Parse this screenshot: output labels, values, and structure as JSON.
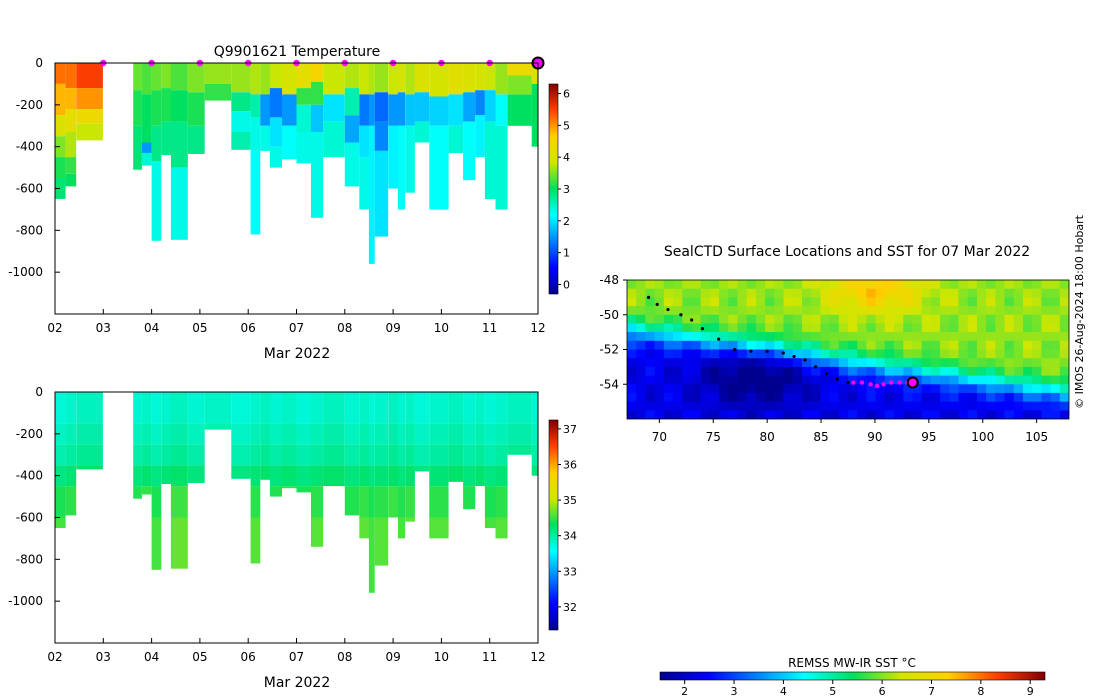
{
  "chart_data": [
    {
      "type": "heatmap",
      "id": "temperature-profile",
      "title": "Q9901621  Temperature",
      "xlabel": "Mar 2022",
      "ylabel": "",
      "x_ticks": [
        "02",
        "03",
        "04",
        "05",
        "06",
        "07",
        "08",
        "09",
        "10",
        "11",
        "12"
      ],
      "x_range": [
        2,
        12
      ],
      "y_ticks": [
        "0",
        "-200",
        "-400",
        "-600",
        "-800",
        "-1000"
      ],
      "y_tick_values": [
        0,
        -200,
        -400,
        -600,
        -800,
        -1000
      ],
      "y_range": [
        -1200,
        0
      ],
      "colorbar": {
        "min": -0.3,
        "max": 6.3,
        "ticks": [
          "0",
          "1",
          "2",
          "3",
          "4",
          "5",
          "6"
        ],
        "tick_values": [
          0,
          1,
          2,
          3,
          4,
          5,
          6
        ],
        "colormap": "jet"
      },
      "surface_markers_day": [
        3,
        4,
        5,
        6,
        7,
        8,
        9,
        10,
        11
      ],
      "last_position_day": 12,
      "profiles": [
        {
          "day": 2.0,
          "width": 0.22,
          "max_depth": 650,
          "layers": [
            [
              0,
              5.2
            ],
            [
              100,
              4.8
            ],
            [
              250,
              4.0
            ],
            [
              350,
              3.5
            ],
            [
              450,
              3.1
            ],
            [
              550,
              2.9
            ]
          ]
        },
        {
          "day": 2.22,
          "width": 0.22,
          "max_depth": 590,
          "layers": [
            [
              0,
              5.2
            ],
            [
              120,
              4.8
            ],
            [
              220,
              4.2
            ],
            [
              330,
              3.7
            ],
            [
              450,
              3.2
            ],
            [
              530,
              3.0
            ]
          ]
        },
        {
          "day": 2.44,
          "width": 0.55,
          "max_depth": 370,
          "layers": [
            [
              0,
              5.5
            ],
            [
              120,
              5.0
            ],
            [
              220,
              4.3
            ],
            [
              290,
              3.8
            ]
          ]
        },
        {
          "day": 3.62,
          "width": 0.18,
          "max_depth": 510,
          "layers": [
            [
              0,
              3.4
            ],
            [
              130,
              3.1
            ],
            [
              300,
              2.9
            ]
          ]
        },
        {
          "day": 3.8,
          "width": 0.2,
          "max_depth": 490,
          "layers": [
            [
              0,
              3.3
            ],
            [
              150,
              3.0
            ],
            [
              380,
              1.5
            ],
            [
              430,
              2.4
            ]
          ]
        },
        {
          "day": 4.0,
          "width": 0.2,
          "max_depth": 850,
          "layers": [
            [
              0,
              3.4
            ],
            [
              130,
              3.1
            ],
            [
              300,
              2.8
            ],
            [
              470,
              2.3
            ]
          ]
        },
        {
          "day": 4.2,
          "width": 0.2,
          "max_depth": 440,
          "layers": [
            [
              0,
              3.5
            ],
            [
              120,
              3.1
            ],
            [
              280,
              2.8
            ]
          ]
        },
        {
          "day": 4.4,
          "width": 0.35,
          "max_depth": 845,
          "layers": [
            [
              0,
              3.3
            ],
            [
              130,
              3.0
            ],
            [
              280,
              2.8
            ],
            [
              500,
              2.3
            ]
          ]
        },
        {
          "day": 4.75,
          "width": 0.35,
          "max_depth": 435,
          "layers": [
            [
              0,
              3.5
            ],
            [
              140,
              3.1
            ],
            [
              300,
              2.8
            ]
          ]
        },
        {
          "day": 5.1,
          "width": 0.55,
          "max_depth": 180,
          "layers": [
            [
              0,
              3.6
            ],
            [
              100,
              3.2
            ]
          ]
        },
        {
          "day": 5.65,
          "width": 0.4,
          "max_depth": 415,
          "layers": [
            [
              0,
              3.6
            ],
            [
              140,
              2.8
            ],
            [
              230,
              2.3
            ],
            [
              330,
              2.6
            ]
          ]
        },
        {
          "day": 6.05,
          "width": 0.2,
          "max_depth": 820,
          "layers": [
            [
              0,
              3.7
            ],
            [
              150,
              2.6
            ],
            [
              260,
              2.3
            ],
            [
              420,
              2.2
            ]
          ]
        },
        {
          "day": 6.25,
          "width": 0.2,
          "max_depth": 420,
          "layers": [
            [
              0,
              3.6
            ],
            [
              150,
              1.5
            ],
            [
              300,
              2.3
            ]
          ]
        },
        {
          "day": 6.45,
          "width": 0.25,
          "max_depth": 500,
          "layers": [
            [
              0,
              3.8
            ],
            [
              120,
              1.3
            ],
            [
              260,
              2.0
            ],
            [
              400,
              2.3
            ]
          ]
        },
        {
          "day": 6.7,
          "width": 0.3,
          "max_depth": 460,
          "layers": [
            [
              0,
              3.9
            ],
            [
              150,
              1.5
            ],
            [
              300,
              2.2
            ]
          ]
        },
        {
          "day": 7.0,
          "width": 0.3,
          "max_depth": 480,
          "layers": [
            [
              0,
              4.2
            ],
            [
              120,
              3.2
            ],
            [
              200,
              2.4
            ],
            [
              330,
              2.3
            ]
          ]
        },
        {
          "day": 7.3,
          "width": 0.25,
          "max_depth": 740,
          "layers": [
            [
              0,
              4.5
            ],
            [
              90,
              3.2
            ],
            [
              200,
              1.8
            ],
            [
              330,
              2.3
            ]
          ]
        },
        {
          "day": 7.55,
          "width": 0.45,
          "max_depth": 450,
          "layers": [
            [
              0,
              3.8
            ],
            [
              150,
              2.0
            ],
            [
              280,
              2.4
            ]
          ]
        },
        {
          "day": 8.0,
          "width": 0.3,
          "max_depth": 590,
          "layers": [
            [
              0,
              3.7
            ],
            [
              120,
              2.6
            ],
            [
              250,
              1.6
            ],
            [
              380,
              2.3
            ]
          ]
        },
        {
          "day": 8.3,
          "width": 0.2,
          "max_depth": 700,
          "layers": [
            [
              0,
              3.8
            ],
            [
              150,
              1.3
            ],
            [
              300,
              2.0
            ],
            [
              450,
              2.3
            ]
          ]
        },
        {
          "day": 8.5,
          "width": 0.12,
          "max_depth": 960,
          "layers": [
            [
              0,
              3.7
            ],
            [
              150,
              1.5
            ],
            [
              300,
              2.1
            ]
          ]
        },
        {
          "day": 8.62,
          "width": 0.28,
          "max_depth": 830,
          "layers": [
            [
              0,
              3.6
            ],
            [
              140,
              1.2
            ],
            [
              280,
              1.4
            ],
            [
              420,
              2.0
            ]
          ]
        },
        {
          "day": 8.9,
          "width": 0.2,
          "max_depth": 600,
          "layers": [
            [
              0,
              3.8
            ],
            [
              150,
              1.5
            ],
            [
              300,
              2.1
            ]
          ]
        },
        {
          "day": 9.1,
          "width": 0.15,
          "max_depth": 700,
          "layers": [
            [
              0,
              3.9
            ],
            [
              140,
              1.5
            ],
            [
              300,
              2.2
            ]
          ]
        },
        {
          "day": 9.25,
          "width": 0.2,
          "max_depth": 620,
          "layers": [
            [
              0,
              3.7
            ],
            [
              150,
              1.8
            ],
            [
              300,
              2.3
            ]
          ]
        },
        {
          "day": 9.45,
          "width": 0.3,
          "max_depth": 380,
          "layers": [
            [
              0,
              4.0
            ],
            [
              140,
              1.8
            ],
            [
              280,
              2.4
            ]
          ]
        },
        {
          "day": 9.75,
          "width": 0.4,
          "max_depth": 700,
          "layers": [
            [
              0,
              3.9
            ],
            [
              160,
              1.9
            ],
            [
              300,
              2.2
            ]
          ]
        },
        {
          "day": 10.15,
          "width": 0.3,
          "max_depth": 430,
          "layers": [
            [
              0,
              4.1
            ],
            [
              150,
              2.0
            ],
            [
              300,
              2.4
            ]
          ]
        },
        {
          "day": 10.45,
          "width": 0.25,
          "max_depth": 560,
          "layers": [
            [
              0,
              4.0
            ],
            [
              140,
              1.6
            ],
            [
              280,
              2.2
            ]
          ]
        },
        {
          "day": 10.7,
          "width": 0.2,
          "max_depth": 450,
          "layers": [
            [
              0,
              3.9
            ],
            [
              130,
              1.4
            ],
            [
              250,
              2.1
            ]
          ]
        },
        {
          "day": 10.9,
          "width": 0.22,
          "max_depth": 650,
          "layers": [
            [
              0,
              3.8
            ],
            [
              130,
              1.9
            ],
            [
              280,
              2.4
            ]
          ]
        },
        {
          "day": 11.12,
          "width": 0.25,
          "max_depth": 700,
          "layers": [
            [
              0,
              3.6
            ],
            [
              150,
              2.2
            ],
            [
              300,
              2.4
            ]
          ]
        },
        {
          "day": 11.37,
          "width": 0.5,
          "max_depth": 300,
          "layers": [
            [
              0,
              4.3
            ],
            [
              60,
              3.5
            ],
            [
              150,
              3.0
            ]
          ]
        },
        {
          "day": 11.87,
          "width": 0.13,
          "max_depth": 400,
          "layers": [
            [
              0,
              4.0
            ],
            [
              100,
              3.0
            ]
          ]
        }
      ]
    },
    {
      "type": "heatmap",
      "id": "salinity-profile",
      "title": "",
      "xlabel": "Mar 2022",
      "x_ticks": [
        "02",
        "03",
        "04",
        "05",
        "06",
        "07",
        "08",
        "09",
        "10",
        "11",
        "12"
      ],
      "x_range": [
        2,
        12
      ],
      "y_ticks": [
        "0",
        "-200",
        "-400",
        "-600",
        "-800",
        "-1000"
      ],
      "y_tick_values": [
        0,
        -200,
        -400,
        -600,
        -800,
        -1000
      ],
      "y_range": [
        -1200,
        0
      ],
      "colorbar": {
        "min": 31.35,
        "max": 37.25,
        "ticks": [
          "32",
          "33",
          "34",
          "35",
          "36",
          "37"
        ],
        "tick_values": [
          32,
          33,
          34,
          35,
          36,
          37
        ],
        "colormap": "jet"
      },
      "value_bands": [
        [
          0,
          33.8
        ],
        [
          150,
          33.9
        ],
        [
          250,
          34.0
        ],
        [
          350,
          34.2
        ],
        [
          450,
          34.45
        ],
        [
          600,
          34.6
        ]
      ]
    },
    {
      "type": "heatmap",
      "id": "sst-map",
      "title": "SealCTD Surface Locations and SST for 07 Mar 2022",
      "x_ticks": [
        "70",
        "75",
        "80",
        "85",
        "90",
        "95",
        "100",
        "105"
      ],
      "x_tick_values": [
        70,
        75,
        80,
        85,
        90,
        95,
        100,
        105
      ],
      "x_range": [
        67,
        108
      ],
      "y_ticks": [
        "-48",
        "-50",
        "-52",
        "-54"
      ],
      "y_tick_values": [
        -48,
        -50,
        -52,
        -54
      ],
      "y_range": [
        -56,
        -48
      ],
      "colorbar": {
        "label": "REMSS MW-IR SST °C",
        "min": 1.5,
        "max": 9.3,
        "ticks": [
          "2",
          "3",
          "4",
          "5",
          "6",
          "7",
          "8",
          "9"
        ],
        "tick_values": [
          2,
          3,
          4,
          5,
          6,
          7,
          8,
          9
        ],
        "colormap": "jet"
      },
      "track_past": [
        [
          69.0,
          -49.0
        ],
        [
          69.8,
          -49.4
        ],
        [
          70.8,
          -49.7
        ],
        [
          72.0,
          -50.0
        ],
        [
          73.0,
          -50.3
        ],
        [
          74.0,
          -50.8
        ],
        [
          75.5,
          -51.4
        ],
        [
          77.0,
          -52.0
        ],
        [
          78.5,
          -52.1
        ],
        [
          80.0,
          -52.1
        ],
        [
          81.5,
          -52.2
        ],
        [
          82.5,
          -52.4
        ],
        [
          83.5,
          -52.6
        ],
        [
          84.5,
          -53.0
        ],
        [
          85.5,
          -53.4
        ],
        [
          86.5,
          -53.7
        ],
        [
          87.5,
          -53.9
        ]
      ],
      "track_recent": [
        [
          88.0,
          -53.9
        ],
        [
          88.8,
          -53.9
        ],
        [
          89.6,
          -54.0
        ],
        [
          90.2,
          -54.1
        ],
        [
          90.8,
          -54.0
        ],
        [
          91.5,
          -53.9
        ],
        [
          92.3,
          -53.9
        ],
        [
          93.0,
          -53.9
        ]
      ],
      "last_position": [
        93.5,
        -53.9
      ],
      "credit": "© IMOS 26-Aug-2024 18:00 Hobart"
    }
  ]
}
